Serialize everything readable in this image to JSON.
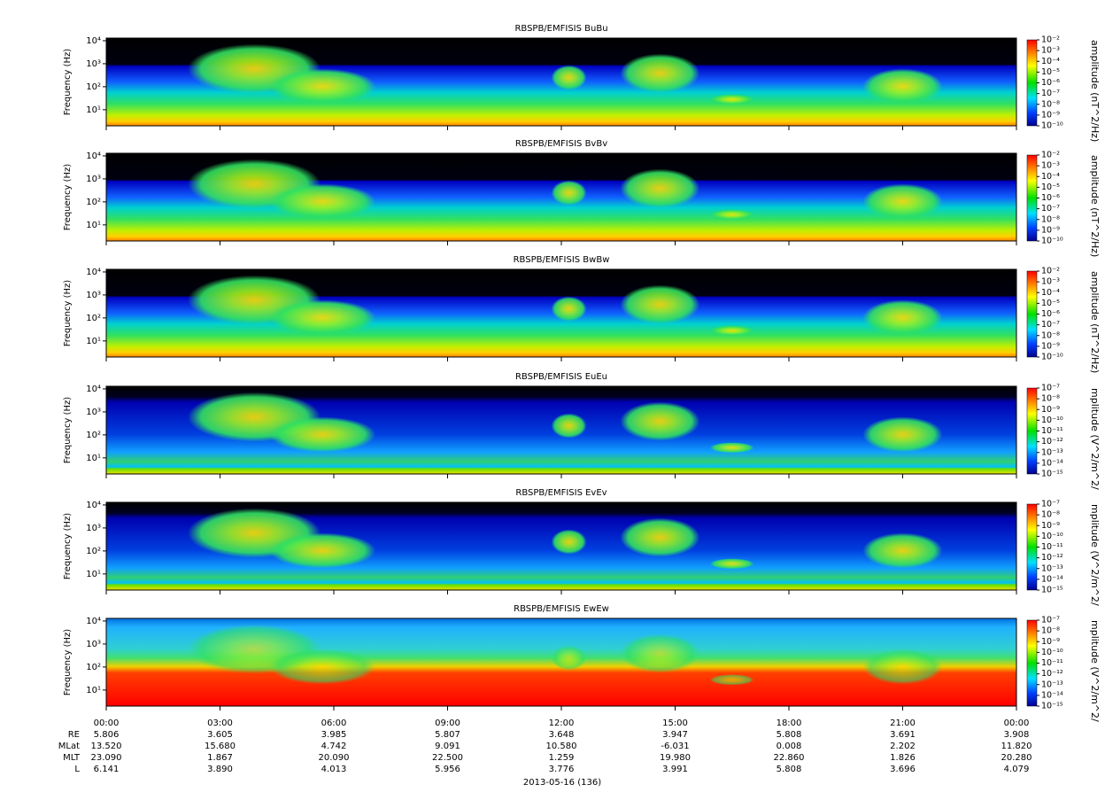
{
  "chart_data": [
    {
      "type": "spectrogram",
      "title": "RBSPB/EMFISIS  BuBu",
      "y_label": "Frequency (Hz)",
      "log_y": true,
      "ylim": [
        2,
        13000
      ],
      "yticks": [
        {
          "value": 10,
          "label": "10¹"
        },
        {
          "value": 100,
          "label": "10²"
        },
        {
          "value": 1000,
          "label": "10³"
        },
        {
          "value": 10000,
          "label": "10⁴"
        }
      ],
      "colorbar": {
        "label": "amplitude (nT^2/Hz)",
        "log": true,
        "lim": [
          1e-10,
          0.01
        ],
        "ticks": [
          {
            "value": 0.01,
            "label": "10⁻²"
          },
          {
            "value": 0.001,
            "label": "10⁻³"
          },
          {
            "value": 0.0001,
            "label": "10⁻⁴"
          },
          {
            "value": 1e-05,
            "label": "10⁻⁵"
          },
          {
            "value": 1e-06,
            "label": "10⁻⁶"
          },
          {
            "value": 1e-07,
            "label": "10⁻⁷"
          },
          {
            "value": 1e-08,
            "label": "10⁻⁸"
          },
          {
            "value": 1e-09,
            "label": "10⁻⁹"
          },
          {
            "value": 1e-10,
            "label": "10⁻¹⁰"
          }
        ]
      }
    },
    {
      "type": "spectrogram",
      "title": "RBSPB/EMFISIS  BvBv",
      "y_label": "Frequency (Hz)",
      "log_y": true,
      "ylim": [
        2,
        13000
      ],
      "yticks": [
        {
          "value": 10,
          "label": "10¹"
        },
        {
          "value": 100,
          "label": "10²"
        },
        {
          "value": 1000,
          "label": "10³"
        },
        {
          "value": 10000,
          "label": "10⁴"
        }
      ],
      "colorbar": {
        "label": "amplitude (nT^2/Hz)",
        "log": true,
        "lim": [
          1e-10,
          0.01
        ],
        "ticks": [
          {
            "value": 0.01,
            "label": "10⁻²"
          },
          {
            "value": 0.001,
            "label": "10⁻³"
          },
          {
            "value": 0.0001,
            "label": "10⁻⁴"
          },
          {
            "value": 1e-05,
            "label": "10⁻⁵"
          },
          {
            "value": 1e-06,
            "label": "10⁻⁶"
          },
          {
            "value": 1e-07,
            "label": "10⁻⁷"
          },
          {
            "value": 1e-08,
            "label": "10⁻⁸"
          },
          {
            "value": 1e-09,
            "label": "10⁻⁹"
          },
          {
            "value": 1e-10,
            "label": "10⁻¹⁰"
          }
        ]
      }
    },
    {
      "type": "spectrogram",
      "title": "RBSPB/EMFISIS  BwBw",
      "y_label": "Frequency (Hz)",
      "log_y": true,
      "ylim": [
        2,
        13000
      ],
      "yticks": [
        {
          "value": 10,
          "label": "10¹"
        },
        {
          "value": 100,
          "label": "10²"
        },
        {
          "value": 1000,
          "label": "10³"
        },
        {
          "value": 10000,
          "label": "10⁴"
        }
      ],
      "colorbar": {
        "label": "amplitude (nT^2/Hz)",
        "log": true,
        "lim": [
          1e-10,
          0.01
        ],
        "ticks": [
          {
            "value": 0.01,
            "label": "10⁻²"
          },
          {
            "value": 0.001,
            "label": "10⁻³"
          },
          {
            "value": 0.0001,
            "label": "10⁻⁴"
          },
          {
            "value": 1e-05,
            "label": "10⁻⁵"
          },
          {
            "value": 1e-06,
            "label": "10⁻⁶"
          },
          {
            "value": 1e-07,
            "label": "10⁻⁷"
          },
          {
            "value": 1e-08,
            "label": "10⁻⁸"
          },
          {
            "value": 1e-09,
            "label": "10⁻⁹"
          },
          {
            "value": 1e-10,
            "label": "10⁻¹⁰"
          }
        ]
      }
    },
    {
      "type": "spectrogram",
      "title": "RBSPB/EMFISIS  EuEu",
      "y_label": "Frequency (Hz)",
      "log_y": true,
      "ylim": [
        2,
        13000
      ],
      "yticks": [
        {
          "value": 10,
          "label": "10¹"
        },
        {
          "value": 100,
          "label": "10²"
        },
        {
          "value": 1000,
          "label": "10³"
        },
        {
          "value": 10000,
          "label": "10⁴"
        }
      ],
      "colorbar": {
        "label": "mplitude (V^2/m^2/",
        "log": true,
        "lim": [
          1e-15,
          1e-07
        ],
        "ticks": [
          {
            "value": 1e-07,
            "label": "10⁻⁷"
          },
          {
            "value": 1e-08,
            "label": "10⁻⁸"
          },
          {
            "value": 1e-09,
            "label": "10⁻⁹"
          },
          {
            "value": 1e-10,
            "label": "10⁻¹⁰"
          },
          {
            "value": 1e-11,
            "label": "10⁻¹¹"
          },
          {
            "value": 1e-12,
            "label": "10⁻¹²"
          },
          {
            "value": 1e-13,
            "label": "10⁻¹³"
          },
          {
            "value": 1e-14,
            "label": "10⁻¹⁴"
          },
          {
            "value": 1e-15,
            "label": "10⁻¹⁵"
          }
        ]
      }
    },
    {
      "type": "spectrogram",
      "title": "RBSPB/EMFISIS  EvEv",
      "y_label": "Frequency (Hz)",
      "log_y": true,
      "ylim": [
        2,
        13000
      ],
      "yticks": [
        {
          "value": 10,
          "label": "10¹"
        },
        {
          "value": 100,
          "label": "10²"
        },
        {
          "value": 1000,
          "label": "10³"
        },
        {
          "value": 10000,
          "label": "10⁴"
        }
      ],
      "colorbar": {
        "label": "mplitude (V^2/m^2/",
        "log": true,
        "lim": [
          1e-15,
          1e-07
        ],
        "ticks": [
          {
            "value": 1e-07,
            "label": "10⁻⁷"
          },
          {
            "value": 1e-08,
            "label": "10⁻⁸"
          },
          {
            "value": 1e-09,
            "label": "10⁻⁹"
          },
          {
            "value": 1e-10,
            "label": "10⁻¹⁰"
          },
          {
            "value": 1e-11,
            "label": "10⁻¹¹"
          },
          {
            "value": 1e-12,
            "label": "10⁻¹²"
          },
          {
            "value": 1e-13,
            "label": "10⁻¹³"
          },
          {
            "value": 1e-14,
            "label": "10⁻¹⁴"
          },
          {
            "value": 1e-15,
            "label": "10⁻¹⁵"
          }
        ]
      }
    },
    {
      "type": "spectrogram",
      "title": "RBSPB/EMFISIS  EwEw",
      "y_label": "Frequency (Hz)",
      "log_y": true,
      "ylim": [
        2,
        13000
      ],
      "yticks": [
        {
          "value": 10,
          "label": "10¹"
        },
        {
          "value": 100,
          "label": "10²"
        },
        {
          "value": 1000,
          "label": "10³"
        },
        {
          "value": 10000,
          "label": "10⁴"
        }
      ],
      "colorbar": {
        "label": "mplitude (V^2/m^2/",
        "log": true,
        "lim": [
          1e-15,
          1e-07
        ],
        "ticks": [
          {
            "value": 1e-07,
            "label": "10⁻⁷"
          },
          {
            "value": 1e-08,
            "label": "10⁻⁸"
          },
          {
            "value": 1e-09,
            "label": "10⁻⁹"
          },
          {
            "value": 1e-10,
            "label": "10⁻¹⁰"
          },
          {
            "value": 1e-11,
            "label": "10⁻¹¹"
          },
          {
            "value": 1e-12,
            "label": "10⁻¹²"
          },
          {
            "value": 1e-13,
            "label": "10⁻¹³"
          },
          {
            "value": 1e-14,
            "label": "10⁻¹⁴"
          },
          {
            "value": 1e-15,
            "label": "10⁻¹⁵"
          }
        ]
      }
    }
  ],
  "x_axis": {
    "xlim": [
      0,
      24
    ],
    "xticks": [
      {
        "value": 0,
        "label": "00:00"
      },
      {
        "value": 3,
        "label": "03:00"
      },
      {
        "value": 6,
        "label": "06:00"
      },
      {
        "value": 9,
        "label": "09:00"
      },
      {
        "value": 12,
        "label": "12:00"
      },
      {
        "value": 15,
        "label": "15:00"
      },
      {
        "value": 18,
        "label": "18:00"
      },
      {
        "value": 21,
        "label": "21:00"
      },
      {
        "value": 24,
        "label": "00:00"
      }
    ],
    "date_label": "2013-05-16 (136)"
  },
  "ephemeris": [
    {
      "label": "RE",
      "values": [
        "5.806",
        "3.605",
        "3.985",
        "5.807",
        "3.648",
        "3.947",
        "5.808",
        "3.691",
        "3.908"
      ]
    },
    {
      "label": "MLat",
      "values": [
        "13.520",
        "15.680",
        "4.742",
        "9.091",
        "10.580",
        "-6.031",
        "0.008",
        "2.202",
        "11.820"
      ]
    },
    {
      "label": "MLT",
      "values": [
        "23.090",
        "1.867",
        "20.090",
        "22.500",
        "1.259",
        "19.980",
        "22.860",
        "1.826",
        "20.280"
      ]
    },
    {
      "label": "L",
      "values": [
        "6.141",
        "3.890",
        "4.013",
        "5.956",
        "3.776",
        "3.991",
        "5.808",
        "3.696",
        "4.079"
      ]
    }
  ]
}
